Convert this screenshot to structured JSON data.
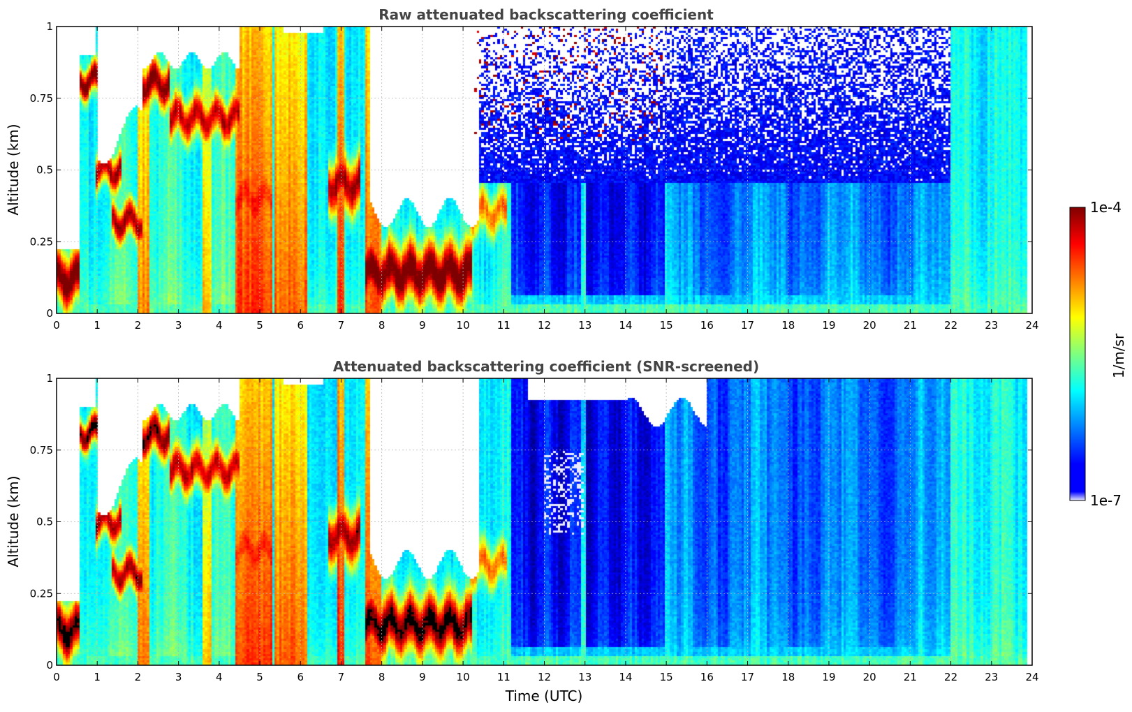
{
  "chart_data": [
    {
      "type": "heatmap",
      "title": "Raw attenuated backscattering coefficient",
      "xlabel": "",
      "ylabel": "Altitude (km)",
      "xlim": [
        0,
        24
      ],
      "ylim": [
        0,
        1
      ],
      "x_ticks": [
        "0",
        "1",
        "2",
        "3",
        "4",
        "5",
        "6",
        "7",
        "8",
        "9",
        "10",
        "11",
        "12",
        "13",
        "14",
        "15",
        "16",
        "17",
        "18",
        "19",
        "20",
        "21",
        "22",
        "23",
        "24"
      ],
      "y_ticks": [
        "0",
        "0.25",
        "0.5",
        "0.75",
        "1"
      ],
      "grid": true,
      "screened": false
    },
    {
      "type": "heatmap",
      "title": "Attenuated backscattering coefficient (SNR-screened)",
      "xlabel": "Time (UTC)",
      "ylabel": "Altitude (km)",
      "xlim": [
        0,
        24
      ],
      "ylim": [
        0,
        1
      ],
      "x_ticks": [
        "0",
        "1",
        "2",
        "3",
        "4",
        "5",
        "6",
        "7",
        "8",
        "9",
        "10",
        "11",
        "12",
        "13",
        "14",
        "15",
        "16",
        "17",
        "18",
        "19",
        "20",
        "21",
        "22",
        "23",
        "24"
      ],
      "y_ticks": [
        "0",
        "0.25",
        "0.5",
        "0.75",
        "1"
      ],
      "grid": true,
      "screened": true
    }
  ],
  "colorbar": {
    "label": "1/m/sr",
    "max_label": "1e-4",
    "min_label": "1e-7",
    "colormap": "jet",
    "scale": "log"
  },
  "profile_model": {
    "cloud_layers": [
      {
        "t0": 0.0,
        "t1": 0.55,
        "z": 0.12,
        "w": 0.09,
        "s": 1.0
      },
      {
        "t0": 0.6,
        "t1": 1.05,
        "z": 0.81,
        "w": 0.05,
        "s": 1.0
      },
      {
        "t0": 0.95,
        "t1": 1.6,
        "z": 0.5,
        "w": 0.06,
        "s": 0.9
      },
      {
        "t0": 1.4,
        "t1": 2.1,
        "z": 0.32,
        "w": 0.06,
        "s": 0.9
      },
      {
        "t0": 2.1,
        "t1": 2.8,
        "z": 0.8,
        "w": 0.07,
        "s": 0.95
      },
      {
        "t0": 2.8,
        "t1": 4.5,
        "z": 0.68,
        "w": 0.07,
        "s": 0.85
      },
      {
        "t0": 4.4,
        "t1": 5.3,
        "z": 0.4,
        "w": 0.12,
        "s": 0.7
      },
      {
        "t0": 6.7,
        "t1": 7.5,
        "z": 0.45,
        "w": 0.09,
        "s": 0.9
      },
      {
        "t0": 7.6,
        "t1": 10.2,
        "z": 0.14,
        "w": 0.1,
        "s": 1.0
      },
      {
        "t0": 10.2,
        "t1": 11.1,
        "z": 0.35,
        "w": 0.07,
        "s": 0.6
      }
    ],
    "column_events": [
      {
        "t0": 2.0,
        "t1": 2.3,
        "v": 0.75
      },
      {
        "t0": 3.6,
        "t1": 3.8,
        "v": 0.7
      },
      {
        "t0": 4.4,
        "t1": 5.3,
        "v": 0.82
      },
      {
        "t0": 5.4,
        "t1": 6.2,
        "v": 0.78
      },
      {
        "t0": 6.9,
        "t1": 7.1,
        "v": 0.85
      },
      {
        "t0": 7.6,
        "t1": 8.0,
        "v": 0.8
      },
      {
        "t0": 12.9,
        "t1": 13.0,
        "v": 0.45
      }
    ]
  }
}
